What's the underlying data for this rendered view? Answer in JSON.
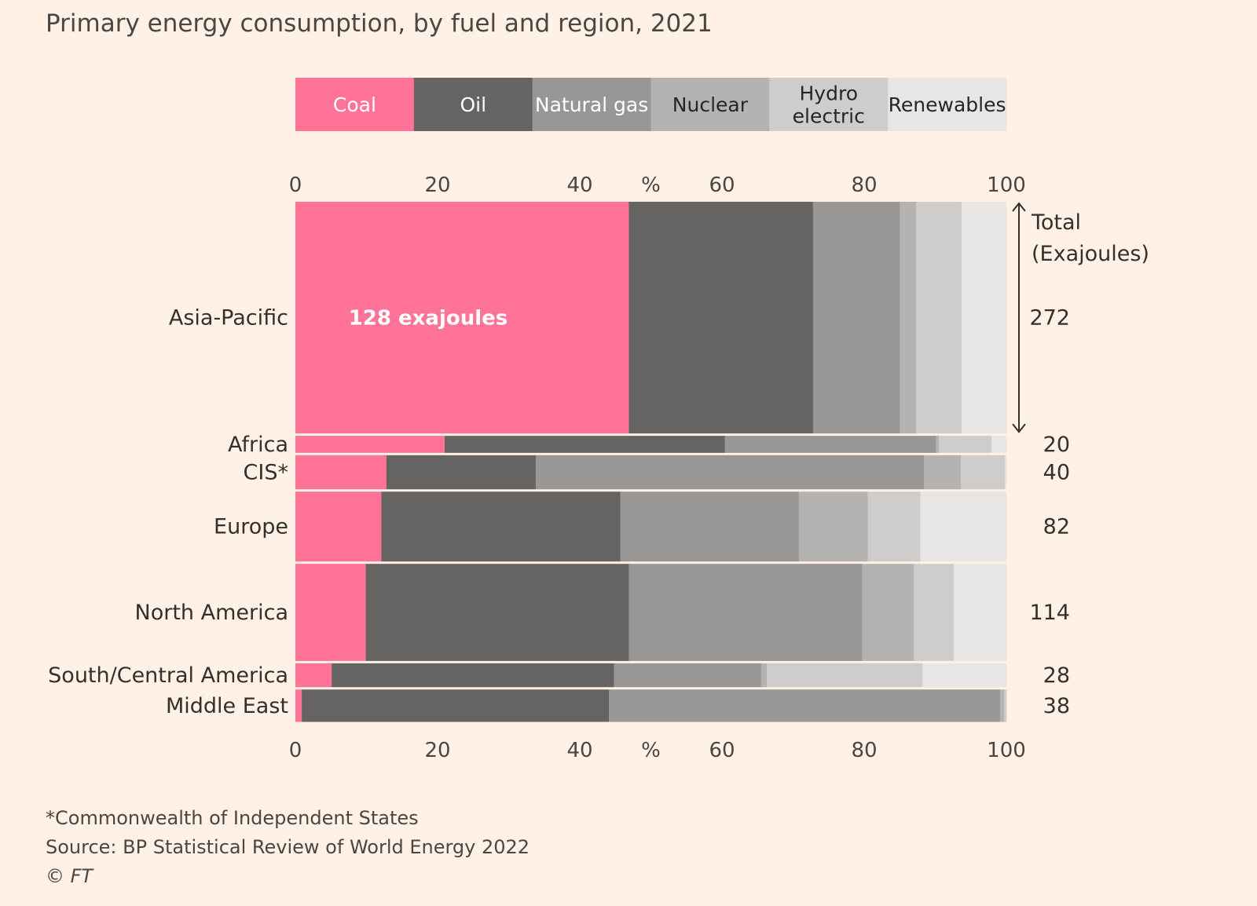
{
  "title": "Primary energy consumption, by fuel and region, 2021",
  "chart_data": {
    "type": "bar",
    "stacking": "percent",
    "xlabel": "%",
    "xlim": [
      0,
      100
    ],
    "xticks": [
      "0",
      "20",
      "40",
      "60",
      "80",
      "100"
    ],
    "fuels": [
      "Coal",
      "Oil",
      "Natural gas",
      "Nuclear",
      "Hydro electric",
      "Renewables"
    ],
    "fuel_labels": [
      [
        "Coal"
      ],
      [
        "Oil"
      ],
      [
        "Natural gas"
      ],
      [
        "Nuclear"
      ],
      [
        "Hydro",
        "electric"
      ],
      [
        "Renewables"
      ]
    ],
    "colors": [
      "#ff7399",
      "#666463",
      "#999795",
      "#b5b3b1",
      "#cfcdcb",
      "#e8e6e4"
    ],
    "legend_text_colors": [
      "#ffffff",
      "#ffffff",
      "#ffffff",
      "#262626",
      "#262626",
      "#262626"
    ],
    "total_header": [
      "Total",
      "(Exajoules)"
    ],
    "annotation": "128 exajoules",
    "regions": [
      {
        "name": "Asia-Pacific",
        "total": "272",
        "shares": [
          46.9,
          25.9,
          12.2,
          2.3,
          6.4,
          6.3
        ]
      },
      {
        "name": "Africa",
        "total": "20",
        "shares": [
          21.0,
          39.4,
          29.7,
          0.4,
          7.4,
          2.1
        ]
      },
      {
        "name": "CIS*",
        "total": "40",
        "shares": [
          12.8,
          21.0,
          54.6,
          5.2,
          6.2,
          0.2
        ]
      },
      {
        "name": "Europe",
        "total": "82",
        "shares": [
          12.1,
          33.6,
          25.1,
          9.7,
          7.4,
          12.1
        ]
      },
      {
        "name": "North America",
        "total": "114",
        "shares": [
          9.9,
          37.0,
          32.8,
          7.3,
          5.6,
          7.4
        ]
      },
      {
        "name": "South/Central America",
        "total": "28",
        "shares": [
          5.1,
          39.7,
          20.7,
          0.8,
          21.9,
          11.8
        ]
      },
      {
        "name": "Middle East",
        "total": "38",
        "shares": [
          0.9,
          43.2,
          55.0,
          0.6,
          0.3,
          0.0
        ]
      }
    ]
  },
  "footer": {
    "note": "*Commonwealth of Independent States",
    "source": "Source: BP Statistical Review of World Energy 2022",
    "copyright": "© FT"
  }
}
